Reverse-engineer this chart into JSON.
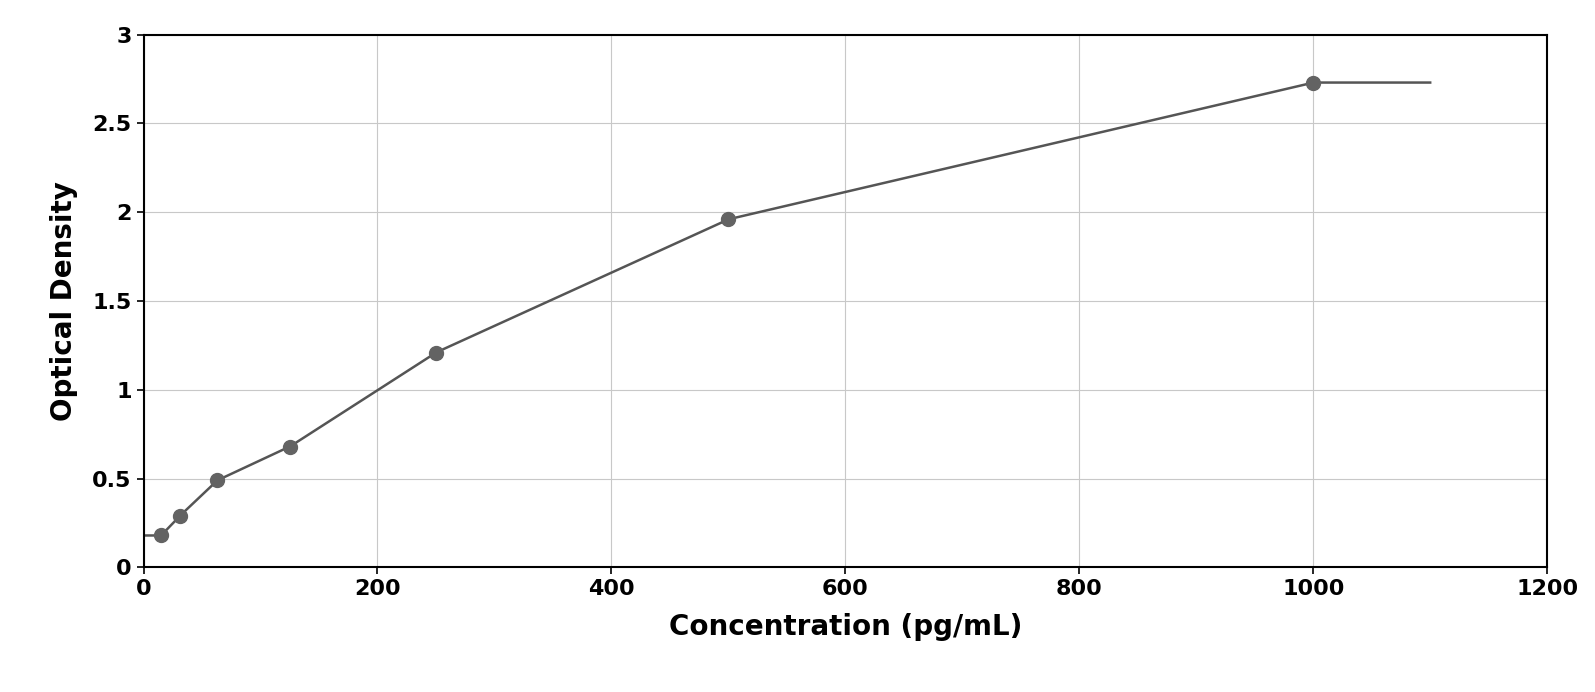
{
  "x_data": [
    15,
    31,
    63,
    125,
    250,
    500,
    1000
  ],
  "y_data": [
    0.18,
    0.29,
    0.49,
    0.68,
    1.21,
    1.96,
    2.73
  ],
  "point_color": "#636363",
  "line_color": "#555555",
  "xlabel": "Concentration (pg/mL)",
  "ylabel": "Optical Density",
  "xlim": [
    0,
    1200
  ],
  "ylim": [
    0,
    3
  ],
  "xticks": [
    0,
    200,
    400,
    600,
    800,
    1000,
    1200
  ],
  "yticks": [
    0,
    0.5,
    1.0,
    1.5,
    2.0,
    2.5,
    3.0
  ],
  "ytick_labels": [
    "0",
    "0.5",
    "1",
    "1.5",
    "2",
    "2.5",
    "3"
  ],
  "grid_color": "#c8c8c8",
  "background_color": "#ffffff",
  "outer_background": "#ffffff",
  "marker_size": 100,
  "line_width": 1.8,
  "xlabel_fontsize": 20,
  "ylabel_fontsize": 20,
  "tick_fontsize": 16,
  "xlabel_fontweight": "bold",
  "ylabel_fontweight": "bold",
  "curve_x_start": 0.1,
  "curve_x_end": 1100,
  "hill_p0": [
    0.05,
    0.6,
    150,
    3.2
  ]
}
